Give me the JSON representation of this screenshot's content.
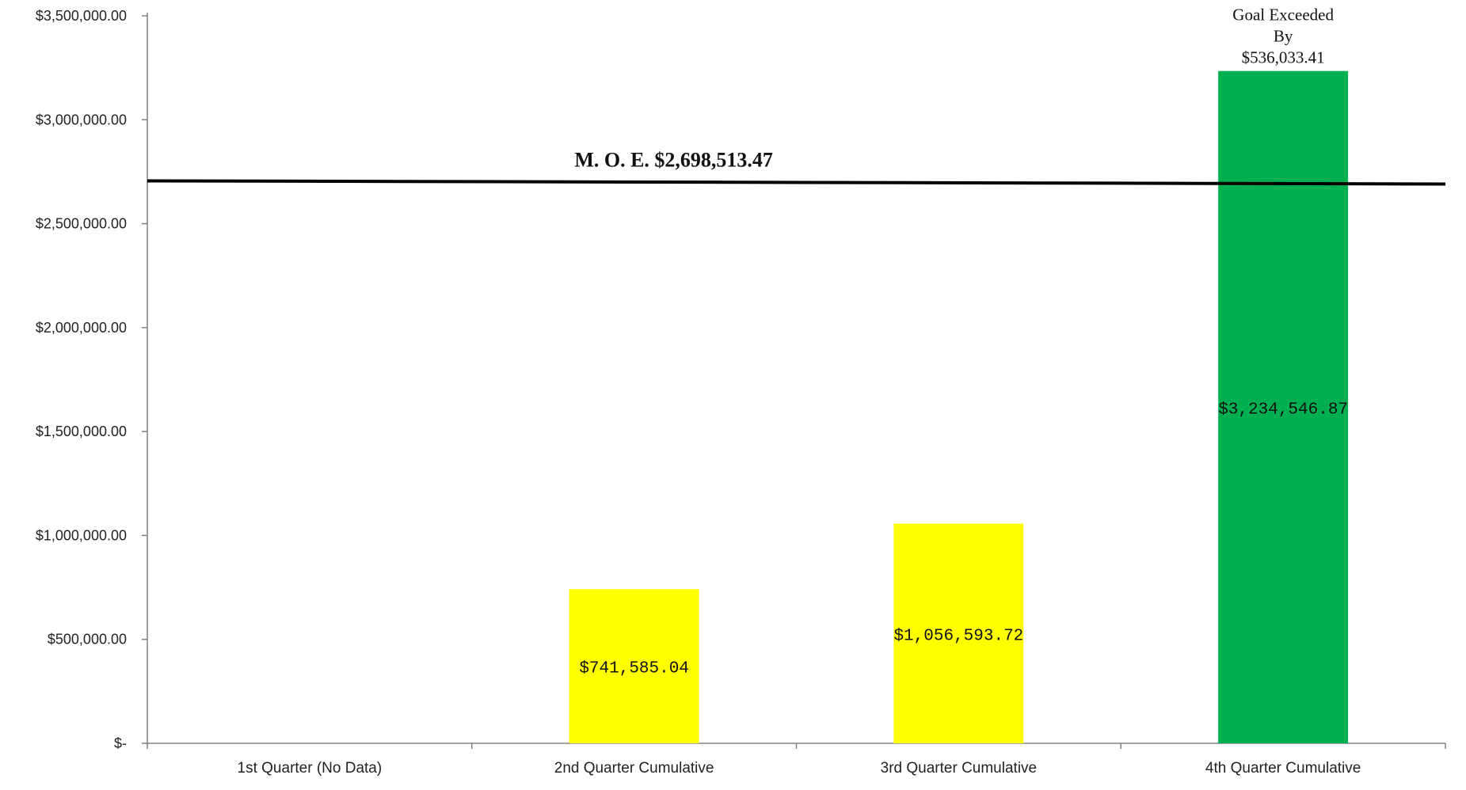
{
  "chart_data": {
    "type": "bar",
    "categories": [
      "1st Quarter (No Data)",
      "2nd Quarter Cumulative",
      "3rd Quarter Cumulative",
      "4th Quarter Cumulative"
    ],
    "values": [
      0,
      741585.04,
      1056593.72,
      3234546.87
    ],
    "data_labels": [
      "",
      "$741,585.04",
      "$1,056,593.72",
      "$3,234,546.87"
    ],
    "bar_colors": [
      "#FFFF00",
      "#FFFF00",
      "#FFFF00",
      "#00B050"
    ],
    "ylim": [
      0,
      3500000
    ],
    "yticks": [
      0,
      500000,
      1000000,
      1500000,
      2000000,
      2500000,
      3000000,
      3500000
    ],
    "ytick_labels": [
      "$-",
      "$500,000.00",
      "$1,000,000.00",
      "$1,500,000.00",
      "$2,000,000.00",
      "$2,500,000.00",
      "$3,000,000.00",
      "$3,500,000.00"
    ],
    "grid": false,
    "reference_line": {
      "value": 2698513.47,
      "label": "M. O. E. $2,698,513.47",
      "color": "#000000"
    },
    "annotation": {
      "lines": [
        "Goal Exceeded",
        "By",
        "$536,033.41"
      ],
      "category_index": 3
    }
  }
}
